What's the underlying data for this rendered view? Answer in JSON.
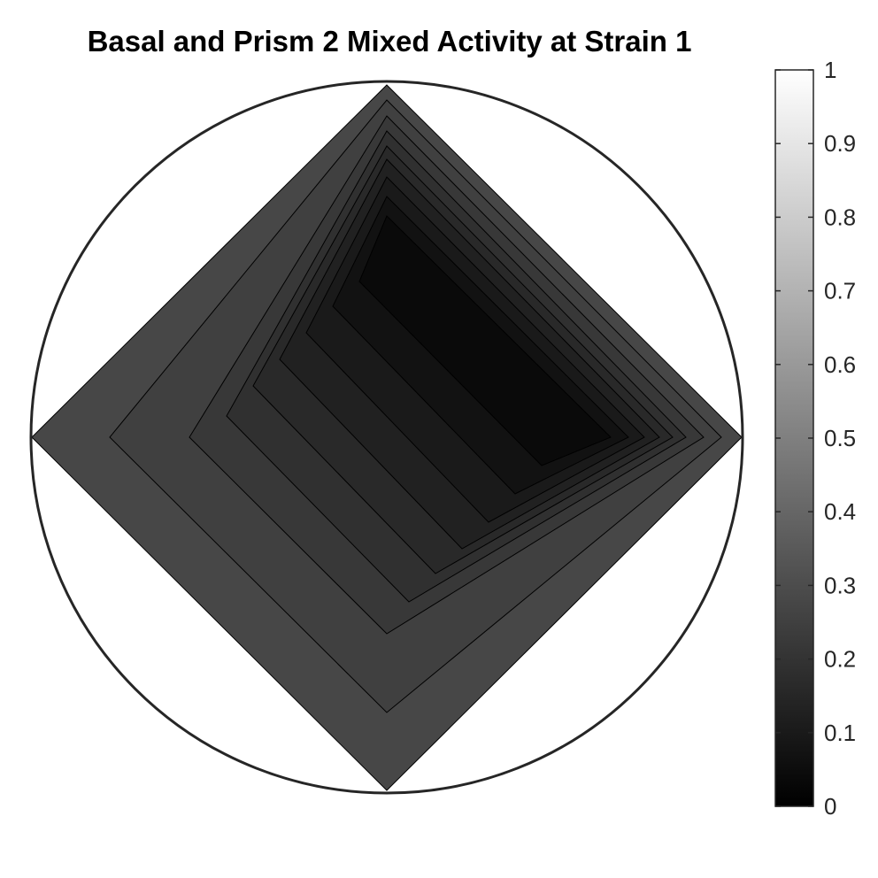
{
  "chart_data": {
    "type": "contour",
    "title": "Basal and Prism 2 Mixed Activity at Strain 1",
    "colormap": "gray",
    "clim": [
      0,
      1
    ],
    "colorbar": {
      "position": "right",
      "ticks": [
        "0",
        "0.1",
        "0.2",
        "0.3",
        "0.4",
        "0.5",
        "0.6",
        "0.7",
        "0.8",
        "0.9",
        "1"
      ]
    },
    "contour_levels": [
      0.28,
      0.25,
      0.22,
      0.19,
      0.16,
      0.13,
      0.1,
      0.07,
      0.04
    ]
  }
}
